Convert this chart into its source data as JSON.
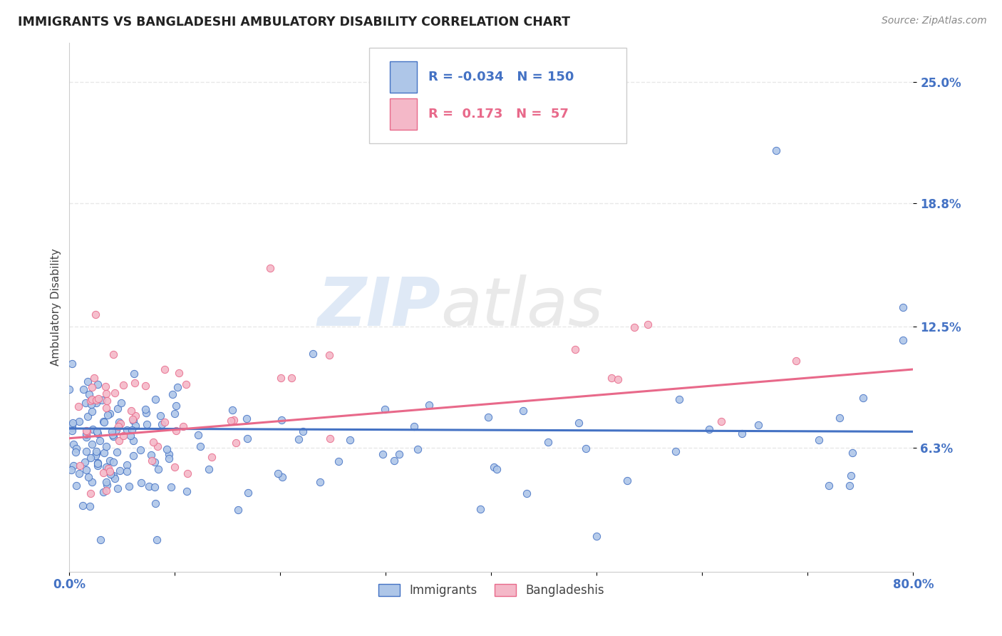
{
  "title": "IMMIGRANTS VS BANGLADESHI AMBULATORY DISABILITY CORRELATION CHART",
  "source": "Source: ZipAtlas.com",
  "ylabel": "Ambulatory Disability",
  "xlim": [
    0.0,
    0.8
  ],
  "ylim": [
    0.0,
    0.27
  ],
  "yticks": [
    0.063,
    0.125,
    0.188,
    0.25
  ],
  "ytick_labels": [
    "6.3%",
    "12.5%",
    "18.8%",
    "25.0%"
  ],
  "xtick_vals": [
    0.0,
    0.1,
    0.2,
    0.3,
    0.4,
    0.5,
    0.6,
    0.7,
    0.8
  ],
  "xtick_labels": [
    "0.0%",
    "",
    "",
    "",
    "",
    "",
    "",
    "",
    "80.0%"
  ],
  "immigrants_color": "#aec6e8",
  "bangladeshis_color": "#f4b8c8",
  "trend_immigrants_color": "#4472c4",
  "trend_bangladeshis_color": "#e8698a",
  "tick_color": "#4472c4",
  "immigrants_R": -0.034,
  "immigrants_N": 150,
  "bangladeshis_R": 0.173,
  "bangladeshis_N": 57,
  "legend_label_immigrants": "Immigrants",
  "legend_label_bangladeshis": "Bangladeshis",
  "watermark_zip": "ZIP",
  "watermark_atlas": "atlas",
  "background_color": "#ffffff",
  "grid_color": "#e8e8e8",
  "grid_style": "--"
}
